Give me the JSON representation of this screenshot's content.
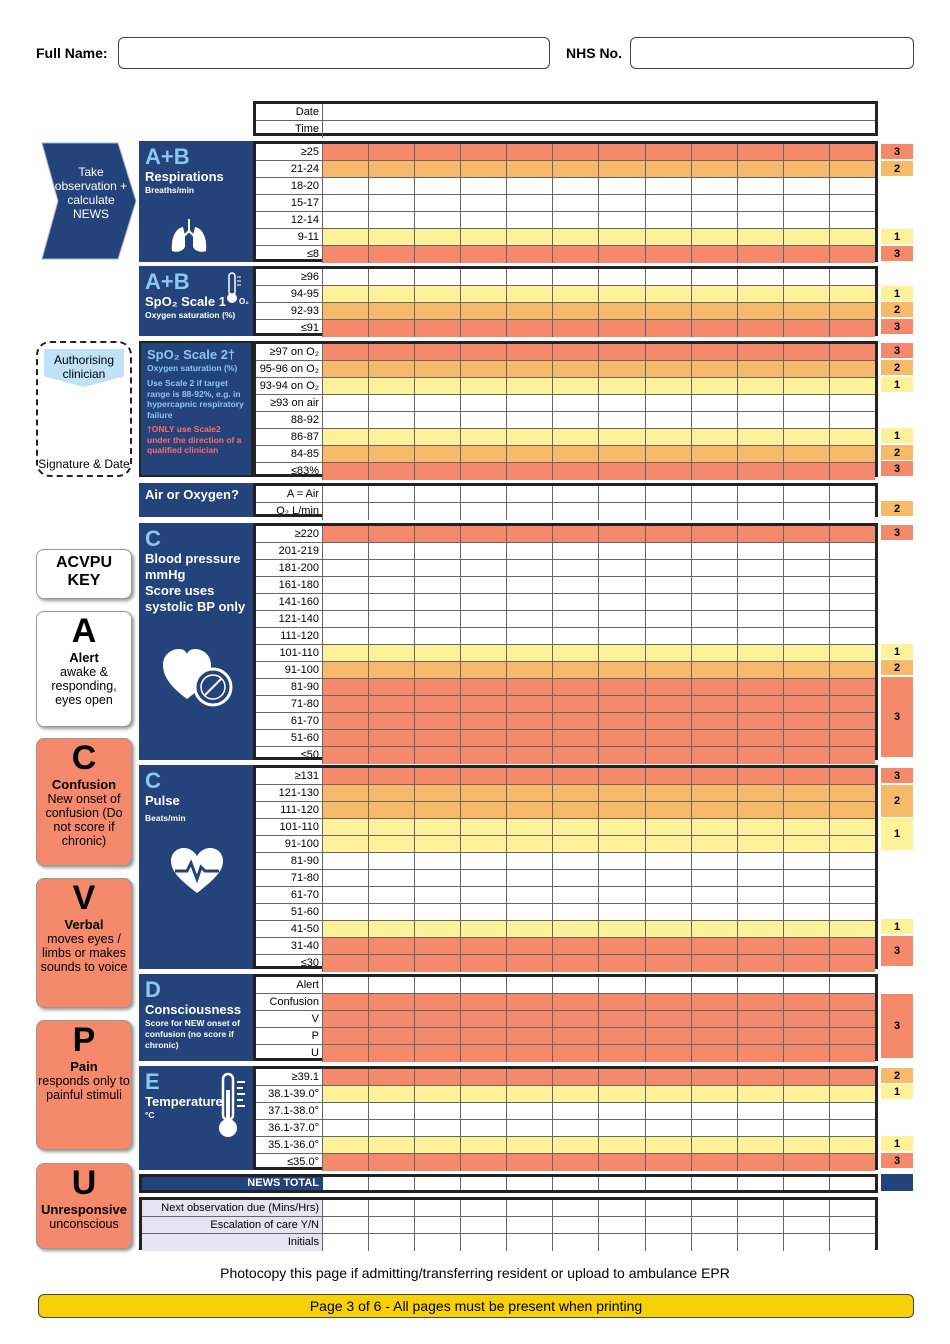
{
  "header": {
    "full_name_label": "Full Name:",
    "nhs_label": "NHS No.",
    "full_name_value": "",
    "nhs_value": ""
  },
  "colors": {
    "navy": "#23437a",
    "score3": "#f4896b",
    "score2": "#f7b96a",
    "score1": "#fdf19a",
    "light_blue": "#8ac8ee",
    "footer": "#f6d106"
  },
  "datetime": {
    "rows": [
      "Date",
      "Time"
    ]
  },
  "arrow": {
    "text": "Take observation + calculate NEWS"
  },
  "authorise": {
    "top": "Authorising clinician",
    "bottom": "Signature & Date"
  },
  "sections": {
    "resp": {
      "big": "A+B",
      "title": "Respirations",
      "sub": "Breaths/min",
      "icon": "lungs-icon",
      "rows": [
        "≥25",
        "21-24",
        "18-20",
        "15-17",
        "12-14",
        "9-11",
        "≤8"
      ]
    },
    "spo1": {
      "big": "A+B",
      "title": "SpO₂ Scale 1",
      "sub": "Oxygen saturation (%)",
      "icon": "thermometer-o2-icon",
      "rows": [
        "≥96",
        "94-95",
        "92-93",
        "≤91"
      ]
    },
    "spo2": {
      "title": "SpO₂ Scale 2†",
      "sub": "Oxygen saturation (%)",
      "note": "Use Scale 2 if target range is 88-92%, e.g. in hypercapnic respiratory failure",
      "red": "†ONLY use Scale2 under the direction of a qualified clinician",
      "rows": [
        "≥97 on O₂",
        "95-96 on O₂",
        "93-94 on O₂",
        "≥93 on air",
        "88-92",
        "86-87",
        "84-85",
        "≤83%"
      ]
    },
    "air": {
      "title": "Air or Oxygen?",
      "rows": [
        "A = Air",
        "O₂ L/min"
      ]
    },
    "bp": {
      "big": "C",
      "title": "Blood pressure mmHg",
      "sub": "Score uses systolic BP only",
      "icon": "heart-gauge-icon",
      "rows": [
        "≥220",
        "201-219",
        "181-200",
        "161-180",
        "141-160",
        "121-140",
        "111-120",
        "101-110",
        "91-100",
        "81-90",
        "71-80",
        "61-70",
        "51-60",
        "≤50"
      ]
    },
    "pulse": {
      "big": "C",
      "title": "Pulse",
      "sub": "Beats/min",
      "icon": "heartbeat-icon",
      "rows": [
        "≥131",
        "121-130",
        "111-120",
        "101-110",
        "91-100",
        "81-90",
        "71-80",
        "61-70",
        "51-60",
        "41-50",
        "31-40",
        "≤30"
      ]
    },
    "cons": {
      "big": "D",
      "title": "Consciousness",
      "sub": "Score for NEW onset of confusion (no score if chronic)",
      "rows": [
        "Alert",
        "Confusion",
        "V",
        "P",
        "U"
      ]
    },
    "temp": {
      "big": "E",
      "title": "Temperature",
      "sub": "°C",
      "icon": "thermometer-icon",
      "rows": [
        "≥39.1",
        "38.1-39.0°",
        "37.1-38.0°",
        "36.1-37.0°",
        "35.1-36.0°",
        "≤35.0°"
      ]
    },
    "total": {
      "title": "NEWS TOTAL"
    },
    "bottom": {
      "rows": [
        "Next observation due (Mins/Hrs)",
        "Escalation of care Y/N",
        "Initials"
      ]
    }
  },
  "scores": {
    "resp": [
      "3",
      "2",
      "1",
      "3"
    ],
    "spo1": [
      "1",
      "2",
      "3"
    ],
    "spo2": [
      "3",
      "2",
      "1",
      "1",
      "2",
      "3"
    ],
    "air": [
      "2"
    ],
    "bp": [
      "3",
      "1",
      "2",
      "3"
    ],
    "pulse": [
      "3",
      "2",
      "1",
      "1",
      "3"
    ],
    "cons": [
      "3"
    ],
    "temp": [
      "2",
      "1",
      "1",
      "3"
    ]
  },
  "acvpu": {
    "title": "ACVPU KEY",
    "items": [
      {
        "letter": "A",
        "word": "Alert",
        "desc": "awake & responding, eyes open"
      },
      {
        "letter": "C",
        "word": "Confusion",
        "desc": "New onset of confusion (Do not score if chronic)"
      },
      {
        "letter": "V",
        "word": "Verbal",
        "desc": "moves eyes / limbs or makes sounds to voice"
      },
      {
        "letter": "P",
        "word": "Pain",
        "desc": "responds only to painful stimuli"
      },
      {
        "letter": "U",
        "word": "Unresponsive",
        "desc": "unconscious"
      }
    ]
  },
  "footer": {
    "note": "Photocopy this page if admitting/transferring resident or upload to ambulance EPR",
    "bar": "Page 3 of 6 - All pages must be present when printing"
  }
}
